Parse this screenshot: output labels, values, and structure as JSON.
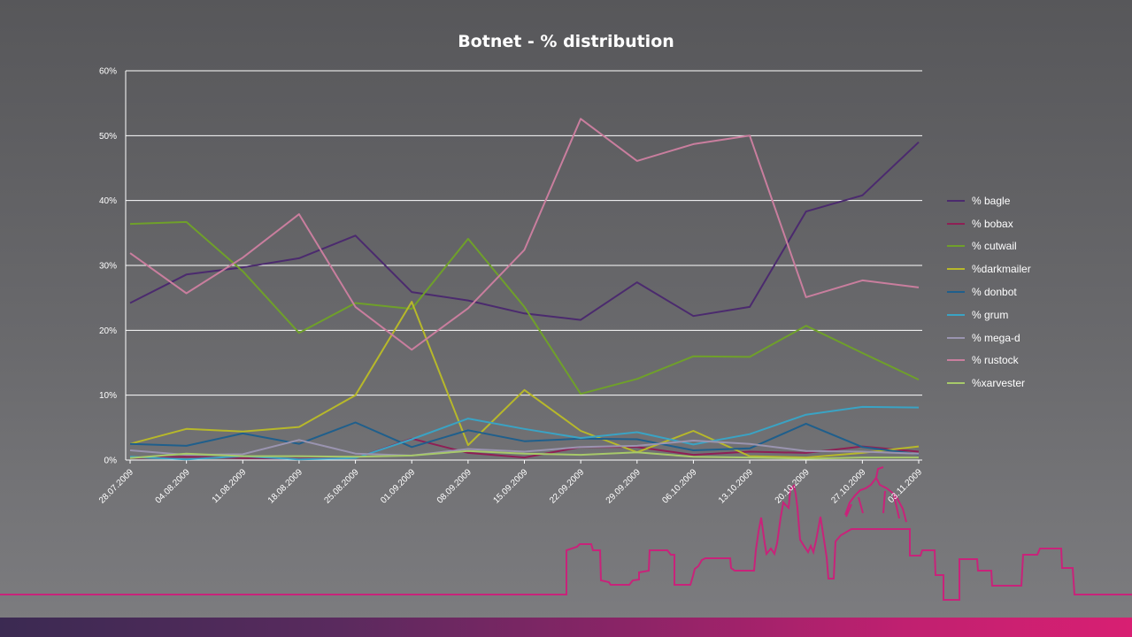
{
  "chart_data": {
    "type": "line",
    "title": "Botnet - % distribution",
    "xlabel": "",
    "ylabel": "",
    "ylim": [
      0,
      60
    ],
    "yticks": [
      "0%",
      "10%",
      "20%",
      "30%",
      "40%",
      "50%",
      "60%"
    ],
    "grid": true,
    "legend_position": "right",
    "categories": [
      "28.07.2009",
      "04.08.2009",
      "11.08.2009",
      "18.08.2009",
      "25.08.2009",
      "01.09.2009",
      "08.09.2009",
      "15.09.2009",
      "22.09.2009",
      "29.09.2009",
      "06.10.2009",
      "13.10.2009",
      "20.10.2009",
      "27.10.2009",
      "03.11.2009"
    ],
    "series": [
      {
        "name": "% bagle",
        "color": "#4b2a6e",
        "values": [
          24.2,
          28.6,
          29.7,
          31.1,
          34.6,
          25.9,
          24.6,
          22.6,
          21.6,
          27.4,
          22.2,
          23.6,
          38.3,
          40.8,
          49.0
        ]
      },
      {
        "name": "% bobax",
        "color": "#8e1f55",
        "values": [
          0.3,
          0.5,
          0.3,
          0.2,
          0.3,
          3.3,
          1.1,
          0.4,
          2.0,
          2.0,
          0.8,
          1.3,
          1.1,
          2.1,
          1.3
        ]
      },
      {
        "name": "% cutwail",
        "color": "#6fa02a",
        "values": [
          36.4,
          36.7,
          29.1,
          19.6,
          24.2,
          23.3,
          34.1,
          23.6,
          10.2,
          12.5,
          16.0,
          15.9,
          20.7,
          16.5,
          12.4
        ]
      },
      {
        "name": "%darkmailer",
        "color": "#b7b82a",
        "values": [
          2.5,
          4.8,
          4.4,
          5.1,
          10.0,
          24.4,
          2.3,
          10.8,
          4.5,
          1.2,
          4.5,
          0.6,
          0.4,
          1.1,
          2.1
        ]
      },
      {
        "name": "% donbot",
        "color": "#1f5f8c",
        "values": [
          2.5,
          2.2,
          4.1,
          2.5,
          5.8,
          2.0,
          4.6,
          2.9,
          3.3,
          3.2,
          1.5,
          1.8,
          5.6,
          2.0,
          0.9
        ]
      },
      {
        "name": "% grum",
        "color": "#3aa3c4",
        "values": [
          0.5,
          0.1,
          0.6,
          0.1,
          0.3,
          3.2,
          6.4,
          4.8,
          3.4,
          4.3,
          2.4,
          4.0,
          7.0,
          8.2,
          8.1
        ]
      },
      {
        "name": "% mega-d",
        "color": "#9a94b0",
        "values": [
          1.5,
          0.8,
          0.9,
          3.1,
          1.0,
          0.7,
          1.7,
          1.3,
          2.0,
          2.2,
          3.0,
          2.5,
          1.4,
          1.3,
          1.0
        ]
      },
      {
        "name": "% rustock",
        "color": "#c97e9e",
        "values": [
          31.9,
          25.7,
          31.2,
          37.9,
          23.6,
          17.0,
          23.4,
          32.4,
          52.6,
          46.1,
          48.7,
          50.0,
          25.1,
          27.7,
          26.6
        ]
      },
      {
        "name": "%xarvester",
        "color": "#a7c96a",
        "values": [
          0.3,
          1.0,
          0.6,
          0.6,
          0.5,
          0.7,
          1.4,
          1.0,
          0.8,
          1.2,
          0.5,
          0.4,
          0.2,
          0.4,
          0.4
        ]
      }
    ]
  }
}
